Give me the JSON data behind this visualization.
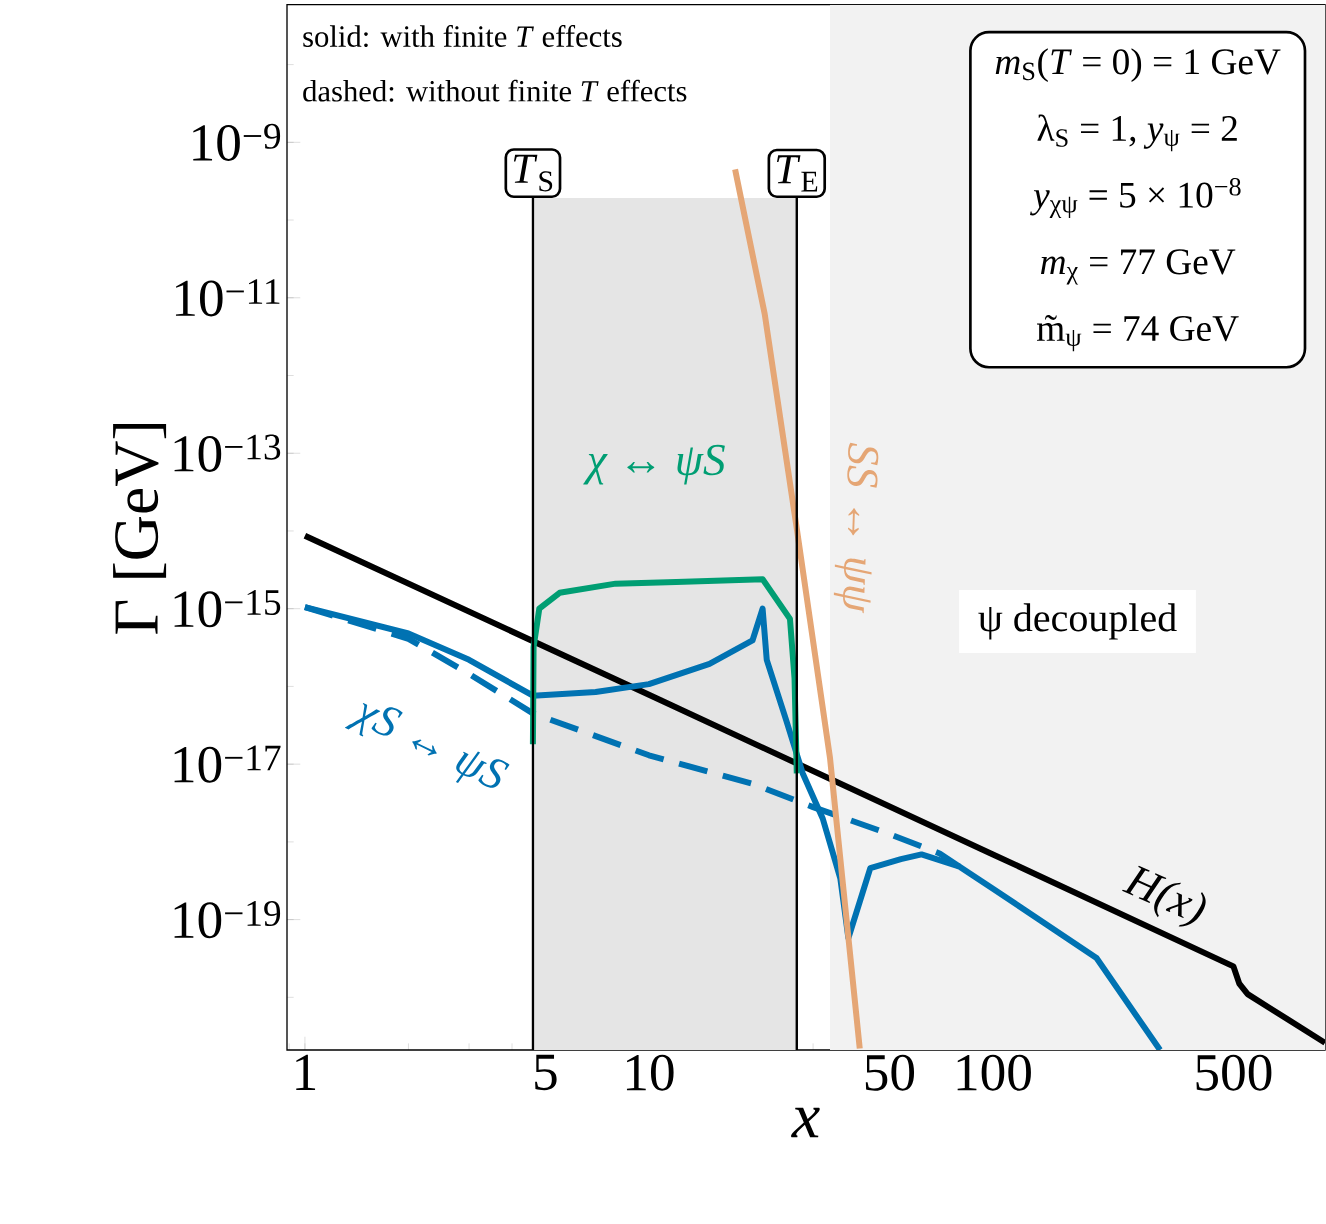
{
  "chart_data": {
    "type": "line",
    "xlabel": "x",
    "ylabel": "Γ [GeV]",
    "log": "xy",
    "grid": false,
    "marker": "none",
    "line_style": "solid",
    "xlim": [
      0.887,
      923
    ],
    "ylim": [
      2.1e-21,
      5.9e-08
    ],
    "xticks": [
      1,
      5,
      10,
      50,
      100,
      500
    ],
    "yticks": [
      {
        "value": 1e-19,
        "label": "10$^{−19}$"
      },
      {
        "value": 1e-17,
        "label": "10$^{−17}$"
      },
      {
        "value": 1e-15,
        "label": "10$^{−15}$"
      },
      {
        "value": 1e-13,
        "label": "10$^{−13}$"
      },
      {
        "value": 1e-11,
        "label": "10$^{−11}$"
      },
      {
        "value": 1e-09,
        "label": "10$^{−9}$"
      }
    ],
    "series": [
      {
        "name": "H(x)",
        "color": "#000000",
        "x": [
          1,
          10,
          100,
          500,
          520,
          550,
          923
        ],
        "values": [
          8.7e-15,
          7.8e-17,
          6.9e-19,
          2.5e-20,
          1.5e-20,
          1.1e-20,
          2.6e-21
        ]
      },
      {
        "name": "χS ↔ ψS",
        "color": "#0072b2",
        "x": [
          1,
          2,
          3,
          4.6,
          7,
          10,
          15,
          20,
          21.4,
          22,
          25,
          28,
          32,
          36,
          38,
          44,
          54,
          62,
          80,
          100,
          200,
          306
        ],
        "values": [
          1.05e-15,
          4.8e-16,
          2.2e-16,
          7.6e-17,
          8.5e-17,
          1.07e-16,
          1.95e-16,
          3.9e-16,
          1e-15,
          2.2e-16,
          3.8e-17,
          7.6e-18,
          2e-18,
          3.4e-19,
          5.8e-20,
          4.6e-19,
          6e-19,
          6.9e-19,
          4.8e-19,
          2.5e-19,
          3.2e-20,
          2.1e-21
        ]
      },
      {
        "color": "#0072b2",
        "line_style": "dashed",
        "x": [
          1,
          2,
          3,
          4.6,
          10,
          20,
          30,
          50,
          70,
          80
        ],
        "values": [
          1.05e-15,
          4.1e-16,
          1.45e-16,
          4.5e-17,
          1.3e-17,
          5.6e-18,
          2.8e-18,
          1.26e-18,
          7.1e-19,
          4.8e-19
        ]
      },
      {
        "name": "χ ↔ ψS",
        "color": "#009e73",
        "x": [
          4.6,
          4.62,
          4.8,
          5.5,
          8,
          12,
          21.4,
          25.7,
          26.5,
          26.9
        ],
        "values": [
          1.8e-17,
          3.2e-16,
          1e-15,
          1.6e-15,
          2.1e-15,
          2.2e-15,
          2.4e-15,
          7.4e-16,
          1.26e-16,
          7.6e-18
        ]
      },
      {
        "name": "SS ↔ ψψ",
        "color": "#e5a675",
        "x": [
          17.8,
          21.7,
          26.9,
          33.6,
          41
        ],
        "values": [
          4.5e-10,
          6.2e-12,
          1.07e-14,
          1.2e-17,
          2.2e-21
        ]
      }
    ],
    "ref_lines": [
      {
        "axis": "x",
        "value": 4.6,
        "label": "*T*$_{S}$"
      },
      {
        "axis": "x",
        "value": 26.9,
        "label": "*T*$_{E}$"
      }
    ],
    "bands": [
      {
        "axis": "x",
        "from": 4.6,
        "to": 26.9,
        "color": "#e5e5e5"
      },
      {
        "axis": "x",
        "from": 33.6,
        "to": 923,
        "color": "#f2f2f2",
        "label": "ψ decoupled"
      }
    ],
    "annotations": [
      "solid: with finite *T* effects",
      "dashed: without finite *T* effects",
      "*m*$_{S}$(*T* = 0) = 1 GeV",
      "λ$_{S}$ = 1, *y*$_{ψ}$ = 2",
      "*y*$_{χψ}$ = 5 × 10$^{−8}$",
      "*m*$_{χ}$ = 77 GeV",
      "m̃$_{ψ}$ = 74 GeV"
    ]
  }
}
